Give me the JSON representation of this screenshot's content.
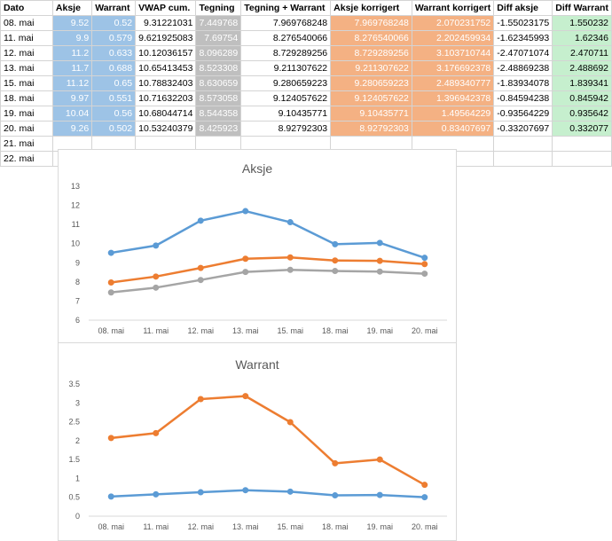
{
  "table": {
    "headers": [
      "Dato",
      "Aksje",
      "Warrant",
      "VWAP cum.",
      "Tegning",
      "Tegning + Warrant",
      "Aksje korrigert",
      "Warrant korrigert",
      "Diff aksje",
      "Diff Warrant"
    ],
    "rows": [
      [
        "08. mai",
        "9.52",
        "0.52",
        "9.31221031",
        "7.449768",
        "7.969768248",
        "7.969768248",
        "2.070231752",
        "-1.55023175",
        "1.550232"
      ],
      [
        "11. mai",
        "9.9",
        "0.579",
        "9.621925083",
        "7.69754",
        "8.276540066",
        "8.276540066",
        "2.202459934",
        "-1.62345993",
        "1.62346"
      ],
      [
        "12. mai",
        "11.2",
        "0.633",
        "10.12036157",
        "8.096289",
        "8.729289256",
        "8.729289256",
        "3.103710744",
        "-2.47071074",
        "2.470711"
      ],
      [
        "13. mai",
        "11.7",
        "0.688",
        "10.65413453",
        "8.523308",
        "9.211307622",
        "9.211307622",
        "3.176692378",
        "-2.48869238",
        "2.488692"
      ],
      [
        "15. mai",
        "11.12",
        "0.65",
        "10.78832403",
        "8.630659",
        "9.280659223",
        "9.280659223",
        "2.489340777",
        "-1.83934078",
        "1.839341"
      ],
      [
        "18. mai",
        "9.97",
        "0.551",
        "10.71632203",
        "8.573058",
        "9.124057622",
        "9.124057622",
        "1.396942378",
        "-0.84594238",
        "0.845942"
      ],
      [
        "19. mai",
        "10.04",
        "0.56",
        "10.68044714",
        "8.544358",
        "9.10435771",
        "9.10435771",
        "1.49564229",
        "-0.93564229",
        "0.935642"
      ],
      [
        "20. mai",
        "9.26",
        "0.502",
        "10.53240379",
        "8.425923",
        "8.92792303",
        "8.92792303",
        "0.83407697",
        "-0.33207697",
        "0.332077"
      ],
      [
        "21. mai",
        "",
        "",
        "",
        "",
        "",
        "",
        "",
        "",
        ""
      ],
      [
        "22. mai",
        "",
        "",
        "",
        "",
        "",
        "",
        "",
        "",
        ""
      ]
    ]
  },
  "colors": {
    "blue": "#5b9bd5",
    "orange": "#ed7d31",
    "gray": "#a5a5a5"
  },
  "chart_data": [
    {
      "type": "line",
      "title": "Aksje",
      "categories": [
        "08. mai",
        "11. mai",
        "12. mai",
        "13. mai",
        "15. mai",
        "18. mai",
        "19. mai",
        "20. mai"
      ],
      "ylim": [
        6,
        13
      ],
      "yticks": [
        6,
        7,
        8,
        9,
        10,
        11,
        12,
        13
      ],
      "grid": false,
      "series": [
        {
          "values": [
            9.52,
            9.9,
            11.2,
            11.7,
            11.12,
            9.97,
            10.04,
            9.26
          ],
          "color": "#5b9bd5"
        },
        {
          "values": [
            7.97,
            8.28,
            8.73,
            9.21,
            9.28,
            9.12,
            9.1,
            8.93
          ],
          "color": "#ed7d31"
        },
        {
          "values": [
            7.45,
            7.7,
            8.1,
            8.52,
            8.63,
            8.57,
            8.54,
            8.43
          ],
          "color": "#a5a5a5"
        }
      ]
    },
    {
      "type": "line",
      "title": "Warrant",
      "categories": [
        "08. mai",
        "11. mai",
        "12. mai",
        "13. mai",
        "15. mai",
        "18. mai",
        "19. mai",
        "20. mai"
      ],
      "ylim": [
        0,
        3.5
      ],
      "yticks": [
        0,
        0.5,
        1,
        1.5,
        2,
        2.5,
        3,
        3.5
      ],
      "grid": false,
      "series": [
        {
          "values": [
            0.52,
            0.579,
            0.633,
            0.688,
            0.65,
            0.551,
            0.56,
            0.502
          ],
          "color": "#5b9bd5"
        },
        {
          "values": [
            2.07,
            2.2,
            3.1,
            3.18,
            2.49,
            1.4,
            1.5,
            0.83
          ],
          "color": "#ed7d31"
        }
      ]
    }
  ]
}
